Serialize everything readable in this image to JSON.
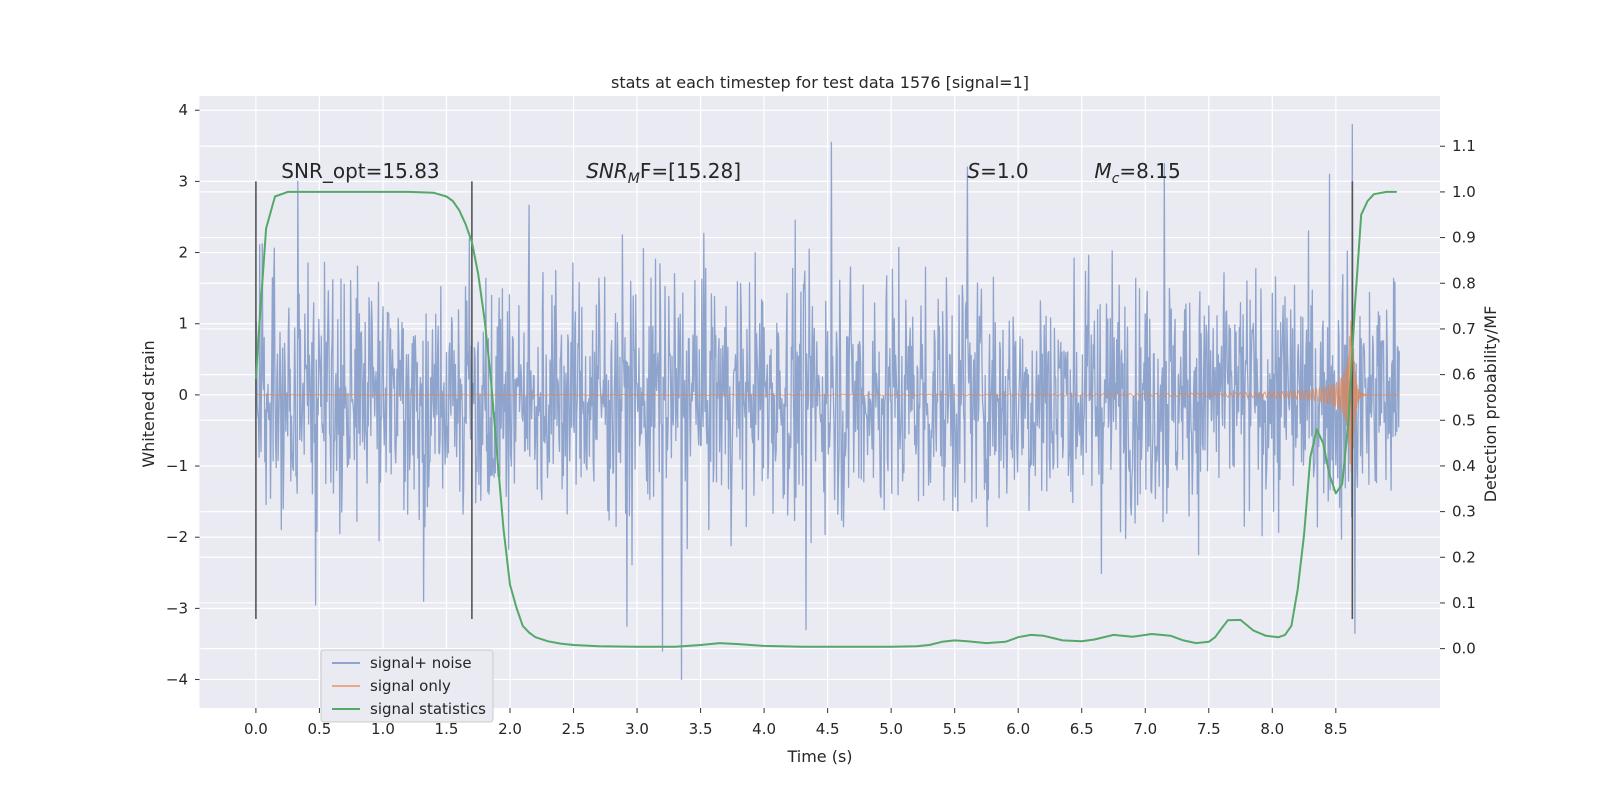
{
  "chart_data": {
    "type": "line",
    "title": "stats at each timestep for test data 1576 [signal=1]",
    "xlabel": "Time (s)",
    "ylabel": "Whitened strain",
    "ylabel_right": "Detection probability/MF",
    "xlim": [
      -0.44,
      9.32
    ],
    "ylim": [
      -4.4,
      4.2
    ],
    "ylim_right": [
      -0.13,
      1.21
    ],
    "x_ticks": [
      "0.0",
      "0.5",
      "1.0",
      "1.5",
      "2.0",
      "2.5",
      "3.0",
      "3.5",
      "4.0",
      "4.5",
      "5.0",
      "5.5",
      "6.0",
      "6.5",
      "7.0",
      "7.5",
      "8.0",
      "8.5"
    ],
    "y_ticks": [
      "4",
      "3",
      "2",
      "1",
      "0",
      "−1",
      "−2",
      "−3",
      "−4"
    ],
    "y_ticks_right": [
      "0.0",
      "0.1",
      "0.2",
      "0.3",
      "0.4",
      "0.5",
      "0.6",
      "0.7",
      "0.8",
      "0.9",
      "1.0",
      "1.1"
    ],
    "grid": true,
    "legend_position": "lower-left",
    "annotations": [
      {
        "text": "SNR_opt=15.83",
        "x": 0.2,
        "y": 3.05
      },
      {
        "text": "SNR",
        "sub": "M",
        "after": "F=[15.28]",
        "italic": true,
        "x": 2.6,
        "y": 3.05
      },
      {
        "text": "S",
        "after": "=1.0",
        "italic": true,
        "x": 5.6,
        "y": 3.05
      },
      {
        "text": "M",
        "sub": "c",
        "after": "=8.15",
        "italic": true,
        "x": 6.6,
        "y": 3.05
      }
    ],
    "vertical_markers": [
      {
        "x": 0.0,
        "y0": -3.15,
        "y1": 3.0
      },
      {
        "x": 1.7,
        "y0": -3.15,
        "y1": 3.0
      },
      {
        "x": 8.63,
        "y0": -3.15,
        "y1": 3.0
      }
    ],
    "series": [
      {
        "name": "signal+ noise",
        "color": "#8fa4cc",
        "kind": "noise",
        "x_range": [
          0.0,
          9.0
        ],
        "typical_amplitude": 1.1,
        "extremes": [
          {
            "x": 4.53,
            "y": 3.55
          },
          {
            "x": 8.63,
            "y": 3.8
          },
          {
            "x": 3.35,
            "y": -4.0
          },
          {
            "x": 3.2,
            "y": -3.6
          },
          {
            "x": 2.92,
            "y": -3.25
          },
          {
            "x": 4.33,
            "y": -3.3
          },
          {
            "x": 8.65,
            "y": -3.35
          },
          {
            "x": 5.6,
            "y": 3.2
          },
          {
            "x": 7.15,
            "y": 3.25
          },
          {
            "x": 8.45,
            "y": 3.1
          },
          {
            "x": 0.33,
            "y": 3.0
          },
          {
            "x": 1.68,
            "y": 2.2
          },
          {
            "x": 0.47,
            "y": -2.95
          },
          {
            "x": 1.32,
            "y": -2.9
          }
        ]
      },
      {
        "name": "signal only",
        "color": "#dd8452",
        "kind": "chirp",
        "x_range": [
          0.0,
          9.0
        ],
        "merger_time": 8.63,
        "peak_amplitude": 1.1
      },
      {
        "name": "signal statistics",
        "color": "#55a868",
        "axis": "right",
        "x": [
          0.0,
          0.03,
          0.08,
          0.15,
          0.25,
          0.35,
          0.5,
          0.8,
          1.0,
          1.2,
          1.4,
          1.5,
          1.55,
          1.6,
          1.65,
          1.7,
          1.75,
          1.8,
          1.85,
          1.9,
          1.95,
          2.0,
          2.05,
          2.1,
          2.15,
          2.2,
          2.3,
          2.4,
          2.5,
          2.7,
          3.0,
          3.3,
          3.5,
          3.65,
          3.8,
          4.0,
          4.3,
          4.6,
          5.0,
          5.2,
          5.3,
          5.4,
          5.5,
          5.6,
          5.75,
          5.9,
          6.0,
          6.1,
          6.2,
          6.35,
          6.5,
          6.6,
          6.75,
          6.9,
          7.05,
          7.2,
          7.3,
          7.4,
          7.5,
          7.55,
          7.6,
          7.65,
          7.75,
          7.85,
          7.95,
          8.05,
          8.1,
          8.15,
          8.2,
          8.25,
          8.3,
          8.35,
          8.4,
          8.45,
          8.5,
          8.55,
          8.6,
          8.65,
          8.7,
          8.75,
          8.8,
          8.9,
          8.98
        ],
        "values": [
          0.59,
          0.72,
          0.92,
          0.99,
          1.0,
          1.0,
          1.0,
          1.0,
          1.0,
          1.0,
          0.998,
          0.99,
          0.98,
          0.96,
          0.93,
          0.89,
          0.82,
          0.72,
          0.59,
          0.42,
          0.26,
          0.14,
          0.09,
          0.05,
          0.035,
          0.025,
          0.016,
          0.011,
          0.008,
          0.005,
          0.004,
          0.004,
          0.008,
          0.012,
          0.01,
          0.006,
          0.004,
          0.004,
          0.004,
          0.005,
          0.008,
          0.015,
          0.018,
          0.016,
          0.012,
          0.015,
          0.025,
          0.03,
          0.028,
          0.018,
          0.016,
          0.02,
          0.03,
          0.026,
          0.032,
          0.028,
          0.018,
          0.012,
          0.015,
          0.025,
          0.044,
          0.062,
          0.063,
          0.04,
          0.028,
          0.025,
          0.03,
          0.05,
          0.13,
          0.25,
          0.42,
          0.48,
          0.45,
          0.38,
          0.34,
          0.36,
          0.5,
          0.75,
          0.95,
          0.98,
          0.995,
          1.0,
          1.0
        ]
      }
    ]
  }
}
